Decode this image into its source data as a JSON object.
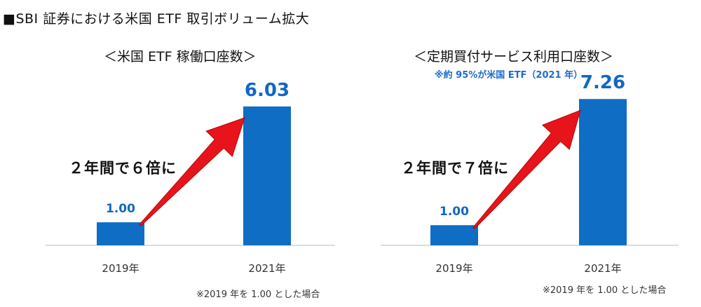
{
  "page_title": "■SBI 証券における米国 ETF 取引ボリューム拡大",
  "chart_data": [
    {
      "type": "bar",
      "title": "＜米国 ETF 稼働口座数＞",
      "subtitle": "",
      "categories": [
        "2019年",
        "2021年"
      ],
      "values": [
        1.0,
        6.03
      ],
      "value_labels": [
        "1.00",
        "6.03"
      ],
      "ylim": [
        0,
        7
      ],
      "annotation": "２年間で６倍に",
      "footnote": "※2019 年を 1.00 とした場合",
      "colors": {
        "bar": "#0f6dc4",
        "arrow": "#e8141b"
      }
    },
    {
      "type": "bar",
      "title": "＜定期買付サービス利用口座数＞",
      "subtitle": "※約 95%が米国 ETF（2021 年）",
      "categories": [
        "2019年",
        "2021年"
      ],
      "values": [
        1.0,
        7.26
      ],
      "value_labels": [
        "1.00",
        "7.26"
      ],
      "ylim": [
        0,
        8
      ],
      "annotation": "２年間で７倍に",
      "footnote": "※2019 年を 1.00 とした場合",
      "colors": {
        "bar": "#0f6dc4",
        "arrow": "#e8141b"
      }
    }
  ]
}
